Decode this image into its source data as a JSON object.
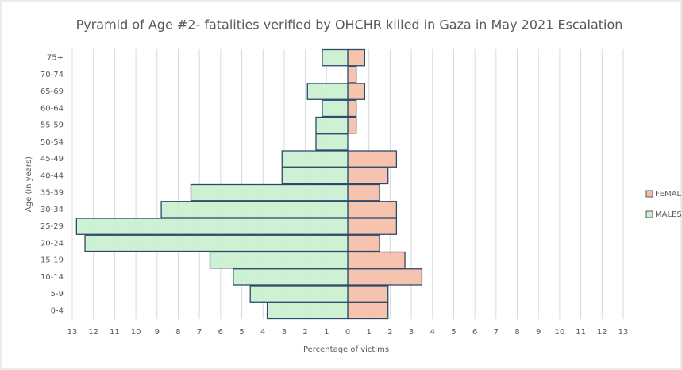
{
  "chart_data": {
    "type": "pyramid",
    "title": "Pyramid of Age #2- fatalities verified by OHCHR killed in Gaza in May 2021 Escalation",
    "x_label": "Percentage of victims",
    "y_label": "Age (in years)",
    "categories": [
      "0-4",
      "5-9",
      "10-14",
      "15-19",
      "20-24",
      "25-29",
      "30-34",
      "35-39",
      "40-44",
      "45-49",
      "50-54",
      "55-59",
      "60-64",
      "65-69",
      "70-74",
      "75+"
    ],
    "series": [
      {
        "name": "FEMAL",
        "color": "#f5bda6",
        "values": [
          1.9,
          1.9,
          3.5,
          2.7,
          1.5,
          2.3,
          2.3,
          1.5,
          1.9,
          2.3,
          0,
          0.4,
          0.4,
          0.8,
          0.4,
          0.8
        ]
      },
      {
        "name": "MALES",
        "color": "#c9f0cf",
        "values": [
          -3.8,
          -4.6,
          -5.4,
          -6.5,
          -12.4,
          -12.8,
          -8.8,
          -7.4,
          -3.1,
          -3.1,
          -1.5,
          -1.5,
          -1.2,
          -1.9,
          0,
          -1.2
        ]
      }
    ],
    "xlim": [
      -13,
      13
    ],
    "xticks": [
      {
        "value": -13,
        "label": "13"
      },
      {
        "value": -12,
        "label": "12"
      },
      {
        "value": -11,
        "label": "11"
      },
      {
        "value": -10,
        "label": "10"
      },
      {
        "value": -9,
        "label": "9"
      },
      {
        "value": -8,
        "label": "8"
      },
      {
        "value": -7,
        "label": "7"
      },
      {
        "value": -6,
        "label": "6"
      },
      {
        "value": -5,
        "label": "5"
      },
      {
        "value": -4,
        "label": "4"
      },
      {
        "value": -3,
        "label": "3"
      },
      {
        "value": -2,
        "label": "2"
      },
      {
        "value": -1,
        "label": "1"
      },
      0,
      1,
      2,
      3,
      4,
      5,
      6,
      7,
      8,
      9,
      10,
      11,
      12,
      13
    ],
    "grid": true,
    "legend": "right"
  }
}
